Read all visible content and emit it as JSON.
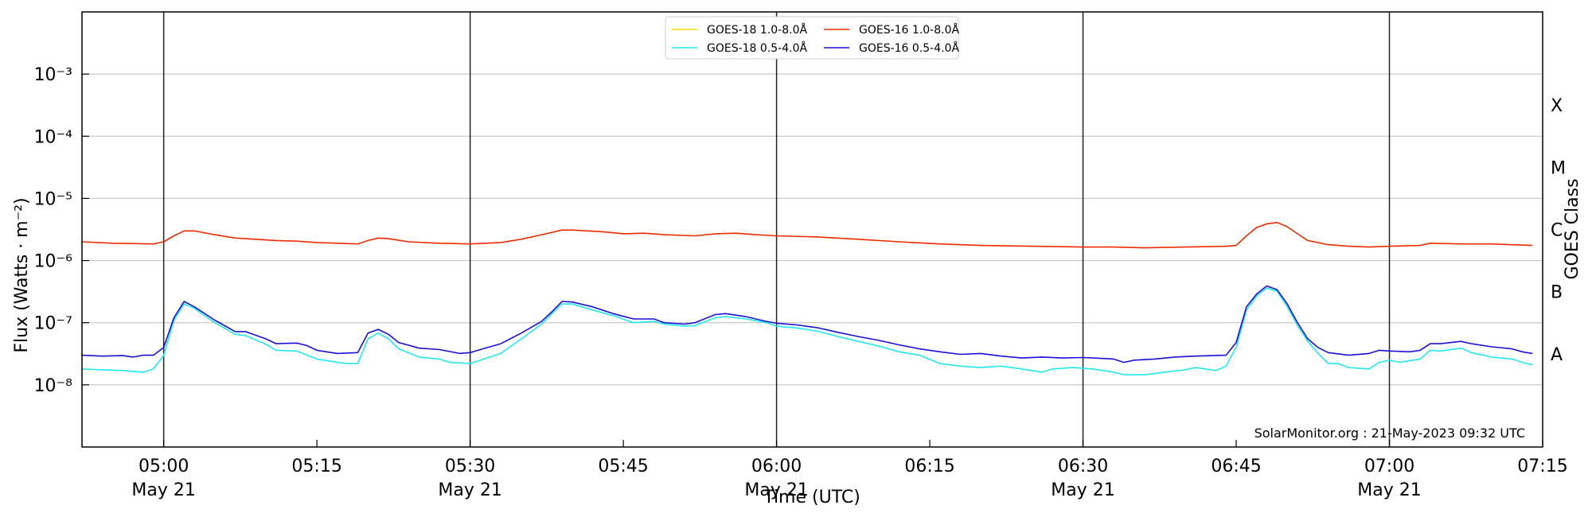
{
  "chart_data": {
    "type": "line",
    "xlabel": "Time (UTC)",
    "ylabel": "Flux (Watts · m⁻²)",
    "right_label": "GOES Class",
    "footer": "SolarMonitor.org : 21-May-2023 09:32 UTC",
    "y_scale": "log",
    "ylim": [
      1e-09,
      0.01
    ],
    "xlim": [
      "04:52",
      "07:15"
    ],
    "y_ticks": [
      {
        "value": 1e-08,
        "label": "10⁻⁸"
      },
      {
        "value": 1e-07,
        "label": "10⁻⁷"
      },
      {
        "value": 1e-06,
        "label": "10⁻⁶"
      },
      {
        "value": 1e-05,
        "label": "10⁻⁵"
      },
      {
        "value": 0.0001,
        "label": "10⁻⁴"
      },
      {
        "value": 0.001,
        "label": "10⁻³"
      }
    ],
    "x_ticks": [
      {
        "time": "05:00",
        "label": "05:00",
        "date": "May 21",
        "vline": true
      },
      {
        "time": "05:15",
        "label": "05:15",
        "date": "",
        "vline": false
      },
      {
        "time": "05:30",
        "label": "05:30",
        "date": "May 21",
        "vline": true
      },
      {
        "time": "05:45",
        "label": "05:45",
        "date": "",
        "vline": false
      },
      {
        "time": "06:00",
        "label": "06:00",
        "date": "May 21",
        "vline": true
      },
      {
        "time": "06:15",
        "label": "06:15",
        "date": "",
        "vline": false
      },
      {
        "time": "06:30",
        "label": "06:30",
        "date": "May 21",
        "vline": true
      },
      {
        "time": "06:45",
        "label": "06:45",
        "date": "",
        "vline": false
      },
      {
        "time": "07:00",
        "label": "07:00",
        "date": "May 21",
        "vline": true
      },
      {
        "time": "07:15",
        "label": "07:15",
        "date": "",
        "vline": false
      }
    ],
    "classes": [
      {
        "label": "A",
        "value": 3.16e-08
      },
      {
        "label": "B",
        "value": 3.16e-07
      },
      {
        "label": "C",
        "value": 3.16e-06
      },
      {
        "label": "M",
        "value": 3.16e-05
      },
      {
        "label": "X",
        "value": 0.000316
      }
    ],
    "grid": true,
    "legend_position": "top-center",
    "series": [
      {
        "name": "GOES-18 1.0-8.0Å",
        "color": "#f5d800",
        "points": []
      },
      {
        "name": "GOES-18 0.5-4.0Å",
        "color": "#22e8f0",
        "points": [
          [
            "04:52",
            1.8e-08
          ],
          [
            "04:54",
            1.75e-08
          ],
          [
            "04:56",
            1.7e-08
          ],
          [
            "04:58",
            1.6e-08
          ],
          [
            "04:59",
            1.8e-08
          ],
          [
            "05:00",
            3e-08
          ],
          [
            "05:01",
            1.1e-07
          ],
          [
            "05:02",
            2e-07
          ],
          [
            "05:03",
            1.7e-07
          ],
          [
            "05:05",
            1e-07
          ],
          [
            "05:07",
            6.5e-08
          ],
          [
            "05:08",
            6.2e-08
          ],
          [
            "05:10",
            4.5e-08
          ],
          [
            "05:11",
            3.6e-08
          ],
          [
            "05:13",
            3.5e-08
          ],
          [
            "05:15",
            2.6e-08
          ],
          [
            "05:17",
            2.3e-08
          ],
          [
            "05:18",
            2.2e-08
          ],
          [
            "05:19",
            2.2e-08
          ],
          [
            "05:20",
            5.5e-08
          ],
          [
            "05:21",
            6.8e-08
          ],
          [
            "05:22",
            5.5e-08
          ],
          [
            "05:23",
            3.8e-08
          ],
          [
            "05:25",
            2.8e-08
          ],
          [
            "05:27",
            2.6e-08
          ],
          [
            "05:28",
            2.3e-08
          ],
          [
            "05:30",
            2.2e-08
          ],
          [
            "05:31",
            2.5e-08
          ],
          [
            "05:33",
            3.2e-08
          ],
          [
            "05:35",
            5.5e-08
          ],
          [
            "05:37",
            9.5e-08
          ],
          [
            "05:38",
            1.4e-07
          ],
          [
            "05:39",
            2e-07
          ],
          [
            "05:40",
            2e-07
          ],
          [
            "05:42",
            1.6e-07
          ],
          [
            "05:44",
            1.3e-07
          ],
          [
            "05:46",
            1e-07
          ],
          [
            "05:48",
            1.05e-07
          ],
          [
            "05:49",
            9.5e-08
          ],
          [
            "05:51",
            8.8e-08
          ],
          [
            "05:52",
            9e-08
          ],
          [
            "05:54",
            1.2e-07
          ],
          [
            "05:55",
            1.25e-07
          ],
          [
            "05:57",
            1.15e-07
          ],
          [
            "05:59",
            1e-07
          ],
          [
            "06:00",
            8.8e-08
          ],
          [
            "06:02",
            8.2e-08
          ],
          [
            "06:04",
            7.3e-08
          ],
          [
            "06:06",
            6e-08
          ],
          [
            "06:08",
            5e-08
          ],
          [
            "06:10",
            4.2e-08
          ],
          [
            "06:12",
            3.4e-08
          ],
          [
            "06:14",
            3e-08
          ],
          [
            "06:16",
            2.2e-08
          ],
          [
            "06:18",
            2e-08
          ],
          [
            "06:20",
            1.9e-08
          ],
          [
            "06:22",
            2e-08
          ],
          [
            "06:24",
            1.8e-08
          ],
          [
            "06:26",
            1.6e-08
          ],
          [
            "06:27",
            1.8e-08
          ],
          [
            "06:29",
            1.9e-08
          ],
          [
            "06:31",
            1.8e-08
          ],
          [
            "06:33",
            1.6e-08
          ],
          [
            "06:34",
            1.45e-08
          ],
          [
            "06:36",
            1.45e-08
          ],
          [
            "06:38",
            1.6e-08
          ],
          [
            "06:40",
            1.75e-08
          ],
          [
            "06:41",
            1.9e-08
          ],
          [
            "06:43",
            1.7e-08
          ],
          [
            "06:44",
            2e-08
          ],
          [
            "06:45",
            4e-08
          ],
          [
            "06:46",
            1.6e-07
          ],
          [
            "06:47",
            2.7e-07
          ],
          [
            "06:48",
            3.6e-07
          ],
          [
            "06:49",
            3.2e-07
          ],
          [
            "06:50",
            1.8e-07
          ],
          [
            "06:51",
            9e-08
          ],
          [
            "06:52",
            5e-08
          ],
          [
            "06:53",
            3.2e-08
          ],
          [
            "06:54",
            2.2e-08
          ],
          [
            "06:55",
            2.2e-08
          ],
          [
            "06:56",
            1.9e-08
          ],
          [
            "06:58",
            1.8e-08
          ],
          [
            "06:59",
            2.3e-08
          ],
          [
            "07:00",
            2.5e-08
          ],
          [
            "07:01",
            2.3e-08
          ],
          [
            "07:03",
            2.6e-08
          ],
          [
            "07:04",
            3.6e-08
          ],
          [
            "07:05",
            3.5e-08
          ],
          [
            "07:07",
            3.9e-08
          ],
          [
            "07:08",
            3.3e-08
          ],
          [
            "07:10",
            2.8e-08
          ],
          [
            "07:12",
            2.6e-08
          ],
          [
            "07:13",
            2.3e-08
          ],
          [
            "07:14",
            2.1e-08
          ]
        ]
      },
      {
        "name": "GOES-16 1.0-8.0Å",
        "color": "#ee2b00",
        "points": [
          [
            "04:52",
            2e-06
          ],
          [
            "04:55",
            1.9e-06
          ],
          [
            "04:59",
            1.85e-06
          ],
          [
            "05:00",
            2e-06
          ],
          [
            "05:01",
            2.5e-06
          ],
          [
            "05:02",
            3e-06
          ],
          [
            "05:03",
            3e-06
          ],
          [
            "05:05",
            2.6e-06
          ],
          [
            "05:07",
            2.3e-06
          ],
          [
            "05:09",
            2.2e-06
          ],
          [
            "05:11",
            2.1e-06
          ],
          [
            "05:13",
            2.05e-06
          ],
          [
            "05:15",
            1.95e-06
          ],
          [
            "05:17",
            1.9e-06
          ],
          [
            "05:19",
            1.85e-06
          ],
          [
            "05:20",
            2.1e-06
          ],
          [
            "05:21",
            2.3e-06
          ],
          [
            "05:22",
            2.25e-06
          ],
          [
            "05:24",
            2e-06
          ],
          [
            "05:27",
            1.9e-06
          ],
          [
            "05:30",
            1.85e-06
          ],
          [
            "05:33",
            1.95e-06
          ],
          [
            "05:35",
            2.2e-06
          ],
          [
            "05:37",
            2.6e-06
          ],
          [
            "05:39",
            3.1e-06
          ],
          [
            "05:40",
            3.1e-06
          ],
          [
            "05:43",
            2.9e-06
          ],
          [
            "05:45",
            2.7e-06
          ],
          [
            "05:47",
            2.75e-06
          ],
          [
            "05:49",
            2.6e-06
          ],
          [
            "05:52",
            2.5e-06
          ],
          [
            "05:54",
            2.7e-06
          ],
          [
            "05:56",
            2.75e-06
          ],
          [
            "05:58",
            2.6e-06
          ],
          [
            "06:00",
            2.5e-06
          ],
          [
            "06:04",
            2.4e-06
          ],
          [
            "06:08",
            2.2e-06
          ],
          [
            "06:12",
            2e-06
          ],
          [
            "06:16",
            1.85e-06
          ],
          [
            "06:20",
            1.75e-06
          ],
          [
            "06:25",
            1.7e-06
          ],
          [
            "06:30",
            1.65e-06
          ],
          [
            "06:33",
            1.65e-06
          ],
          [
            "06:36",
            1.6e-06
          ],
          [
            "06:40",
            1.65e-06
          ],
          [
            "06:44",
            1.7e-06
          ],
          [
            "06:45",
            1.75e-06
          ],
          [
            "06:46",
            2.5e-06
          ],
          [
            "06:47",
            3.4e-06
          ],
          [
            "06:48",
            3.9e-06
          ],
          [
            "06:49",
            4.1e-06
          ],
          [
            "06:50",
            3.5e-06
          ],
          [
            "06:51",
            2.7e-06
          ],
          [
            "06:52",
            2.1e-06
          ],
          [
            "06:54",
            1.8e-06
          ],
          [
            "06:56",
            1.7e-06
          ],
          [
            "06:58",
            1.65e-06
          ],
          [
            "07:00",
            1.7e-06
          ],
          [
            "07:03",
            1.75e-06
          ],
          [
            "07:04",
            1.9e-06
          ],
          [
            "07:07",
            1.85e-06
          ],
          [
            "07:10",
            1.85e-06
          ],
          [
            "07:14",
            1.75e-06
          ]
        ]
      },
      {
        "name": "GOES-16 0.5-4.0Å",
        "color": "#1a10d8",
        "points": [
          [
            "04:52",
            3e-08
          ],
          [
            "04:54",
            2.9e-08
          ],
          [
            "04:56",
            2.95e-08
          ],
          [
            "04:57",
            2.8e-08
          ],
          [
            "04:58",
            3e-08
          ],
          [
            "04:59",
            3e-08
          ],
          [
            "05:00",
            4e-08
          ],
          [
            "05:01",
            1.2e-07
          ],
          [
            "05:02",
            2.2e-07
          ],
          [
            "05:03",
            1.8e-07
          ],
          [
            "05:05",
            1.1e-07
          ],
          [
            "05:07",
            7.2e-08
          ],
          [
            "05:08",
            7.2e-08
          ],
          [
            "05:10",
            5.5e-08
          ],
          [
            "05:11",
            4.6e-08
          ],
          [
            "05:13",
            4.7e-08
          ],
          [
            "05:14",
            4.3e-08
          ],
          [
            "05:15",
            3.6e-08
          ],
          [
            "05:17",
            3.2e-08
          ],
          [
            "05:19",
            3.3e-08
          ],
          [
            "05:20",
            6.8e-08
          ],
          [
            "05:21",
            7.8e-08
          ],
          [
            "05:22",
            6.5e-08
          ],
          [
            "05:23",
            4.8e-08
          ],
          [
            "05:25",
            3.9e-08
          ],
          [
            "05:27",
            3.7e-08
          ],
          [
            "05:29",
            3.2e-08
          ],
          [
            "05:30",
            3.3e-08
          ],
          [
            "05:31",
            3.7e-08
          ],
          [
            "05:33",
            4.6e-08
          ],
          [
            "05:35",
            6.8e-08
          ],
          [
            "05:37",
            1.05e-07
          ],
          [
            "05:38",
            1.5e-07
          ],
          [
            "05:39",
            2.2e-07
          ],
          [
            "05:40",
            2.15e-07
          ],
          [
            "05:42",
            1.8e-07
          ],
          [
            "05:44",
            1.4e-07
          ],
          [
            "05:46",
            1.15e-07
          ],
          [
            "05:48",
            1.15e-07
          ],
          [
            "05:49",
            1e-07
          ],
          [
            "05:51",
            9.5e-08
          ],
          [
            "05:52",
            1e-07
          ],
          [
            "05:54",
            1.35e-07
          ],
          [
            "05:55",
            1.4e-07
          ],
          [
            "05:57",
            1.25e-07
          ],
          [
            "05:59",
            1.05e-07
          ],
          [
            "06:00",
            9.8e-08
          ],
          [
            "06:02",
            9.2e-08
          ],
          [
            "06:04",
            8.3e-08
          ],
          [
            "06:06",
            7e-08
          ],
          [
            "06:08",
            6e-08
          ],
          [
            "06:10",
            5.2e-08
          ],
          [
            "06:12",
            4.4e-08
          ],
          [
            "06:14",
            3.8e-08
          ],
          [
            "06:16",
            3.4e-08
          ],
          [
            "06:18",
            3.1e-08
          ],
          [
            "06:20",
            3.2e-08
          ],
          [
            "06:22",
            2.9e-08
          ],
          [
            "06:24",
            2.7e-08
          ],
          [
            "06:26",
            2.8e-08
          ],
          [
            "06:28",
            2.7e-08
          ],
          [
            "06:30",
            2.75e-08
          ],
          [
            "06:31",
            2.7e-08
          ],
          [
            "06:33",
            2.6e-08
          ],
          [
            "06:34",
            2.3e-08
          ],
          [
            "06:35",
            2.5e-08
          ],
          [
            "06:37",
            2.6e-08
          ],
          [
            "06:39",
            2.8e-08
          ],
          [
            "06:41",
            2.9e-08
          ],
          [
            "06:44",
            3e-08
          ],
          [
            "06:45",
            4.8e-08
          ],
          [
            "06:46",
            1.8e-07
          ],
          [
            "06:47",
            2.9e-07
          ],
          [
            "06:48",
            3.9e-07
          ],
          [
            "06:49",
            3.4e-07
          ],
          [
            "06:50",
            2e-07
          ],
          [
            "06:51",
            1e-07
          ],
          [
            "06:52",
            5.5e-08
          ],
          [
            "06:53",
            4e-08
          ],
          [
            "06:54",
            3.3e-08
          ],
          [
            "06:56",
            3e-08
          ],
          [
            "06:58",
            3.2e-08
          ],
          [
            "06:59",
            3.6e-08
          ],
          [
            "07:00",
            3.5e-08
          ],
          [
            "07:02",
            3.4e-08
          ],
          [
            "07:03",
            3.6e-08
          ],
          [
            "07:04",
            4.6e-08
          ],
          [
            "07:05",
            4.6e-08
          ],
          [
            "07:07",
            5e-08
          ],
          [
            "07:08",
            4.6e-08
          ],
          [
            "07:10",
            4.1e-08
          ],
          [
            "07:12",
            3.8e-08
          ],
          [
            "07:13",
            3.4e-08
          ],
          [
            "07:14",
            3.2e-08
          ]
        ]
      }
    ]
  }
}
